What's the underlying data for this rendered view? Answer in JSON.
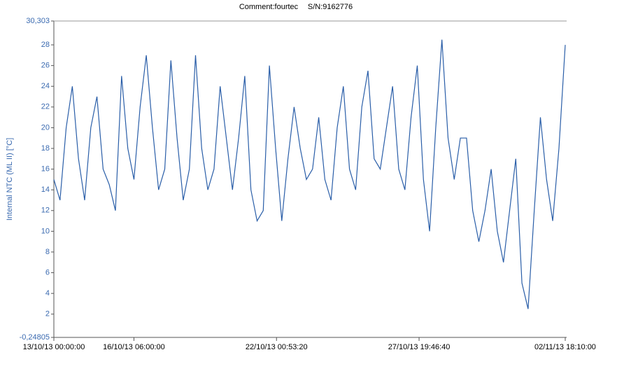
{
  "chart_data": {
    "type": "line",
    "comment": "Comment:fourtec",
    "serial": "S/N:9162776",
    "y_label": "Internal NTC (ML II) [°C]",
    "xlim": [
      "13/10/13 00:00:00",
      "02/11/13 18:10:00"
    ],
    "xticks": [
      "13/10/13 00:00:00",
      "16/10/13 06:00:00",
      "22/10/13 00:53:20",
      "27/10/13 19:46:40",
      "02/11/13 18:10:00"
    ],
    "ylim": [
      -0.24805,
      30.303
    ],
    "yticks": [
      {
        "value": -0.24805,
        "label": "-0,24805"
      },
      2,
      4,
      6,
      8,
      10,
      12,
      14,
      16,
      18,
      20,
      22,
      24,
      26,
      28,
      {
        "value": 30.303,
        "label": "30,303"
      }
    ],
    "x": [
      "13/10/13 00:00:00",
      "13/10/13 06:00:00",
      "13/10/13 12:00:00",
      "13/10/13 18:00:00",
      "14/10/13 00:00:00",
      "14/10/13 06:00:00",
      "14/10/13 12:00:00",
      "14/10/13 18:00:00",
      "15/10/13 00:00:00",
      "15/10/13 06:00:00",
      "15/10/13 12:00:00",
      "15/10/13 18:00:00",
      "16/10/13 00:00:00",
      "16/10/13 06:00:00",
      "16/10/13 12:00:00",
      "16/10/13 18:00:00",
      "17/10/13 00:00:00",
      "17/10/13 06:00:00",
      "17/10/13 12:00:00",
      "17/10/13 18:00:00",
      "18/10/13 00:00:00",
      "18/10/13 06:00:00",
      "18/10/13 12:00:00",
      "18/10/13 18:00:00",
      "19/10/13 00:00:00",
      "19/10/13 06:00:00",
      "19/10/13 12:00:00",
      "19/10/13 18:00:00",
      "20/10/13 00:00:00",
      "20/10/13 06:00:00",
      "20/10/13 12:00:00",
      "20/10/13 18:00:00",
      "21/10/13 00:00:00",
      "21/10/13 06:00:00",
      "21/10/13 12:00:00",
      "21/10/13 18:00:00",
      "22/10/13 00:00:00",
      "22/10/13 06:00:00",
      "22/10/13 12:00:00",
      "22/10/13 18:00:00",
      "23/10/13 00:00:00",
      "23/10/13 06:00:00",
      "23/10/13 12:00:00",
      "23/10/13 18:00:00",
      "24/10/13 00:00:00",
      "24/10/13 06:00:00",
      "24/10/13 12:00:00",
      "24/10/13 18:00:00",
      "25/10/13 00:00:00",
      "25/10/13 06:00:00",
      "25/10/13 12:00:00",
      "25/10/13 18:00:00",
      "26/10/13 00:00:00",
      "26/10/13 06:00:00",
      "26/10/13 12:00:00",
      "26/10/13 18:00:00",
      "27/10/13 00:00:00",
      "27/10/13 06:00:00",
      "27/10/13 12:00:00",
      "27/10/13 18:00:00",
      "28/10/13 00:00:00",
      "28/10/13 06:00:00",
      "28/10/13 12:00:00",
      "28/10/13 18:00:00",
      "29/10/13 00:00:00",
      "29/10/13 06:00:00",
      "29/10/13 12:00:00",
      "29/10/13 18:00:00",
      "30/10/13 00:00:00",
      "30/10/13 06:00:00",
      "30/10/13 12:00:00",
      "30/10/13 18:00:00",
      "31/10/13 00:00:00",
      "31/10/13 06:00:00",
      "31/10/13 12:00:00",
      "31/10/13 18:00:00",
      "01/11/13 00:00:00",
      "01/11/13 06:00:00",
      "01/11/13 12:00:00",
      "01/11/13 18:00:00",
      "02/11/13 00:00:00",
      "02/11/13 06:00:00",
      "02/11/13 12:00:00",
      "02/11/13 18:10:00"
    ],
    "values": [
      15,
      13,
      20,
      24,
      17,
      13,
      20,
      23,
      16,
      14.5,
      12,
      25,
      18,
      15,
      22,
      27,
      20,
      14,
      16,
      26.5,
      19,
      13,
      16,
      27,
      18,
      14,
      16,
      24,
      19,
      14,
      19,
      25,
      14,
      11,
      12,
      26,
      18,
      11,
      17,
      22,
      18,
      15,
      16,
      21,
      15,
      13,
      20,
      24,
      16,
      14,
      22,
      25.5,
      17,
      16,
      20,
      24,
      16,
      14,
      21,
      26,
      15,
      10,
      20,
      28.5,
      19,
      15,
      19,
      19,
      12,
      9,
      12,
      16,
      10,
      7,
      12,
      17,
      5,
      2.5,
      12,
      21,
      15,
      11,
      18,
      28
    ],
    "color": "#2a5ea8"
  }
}
